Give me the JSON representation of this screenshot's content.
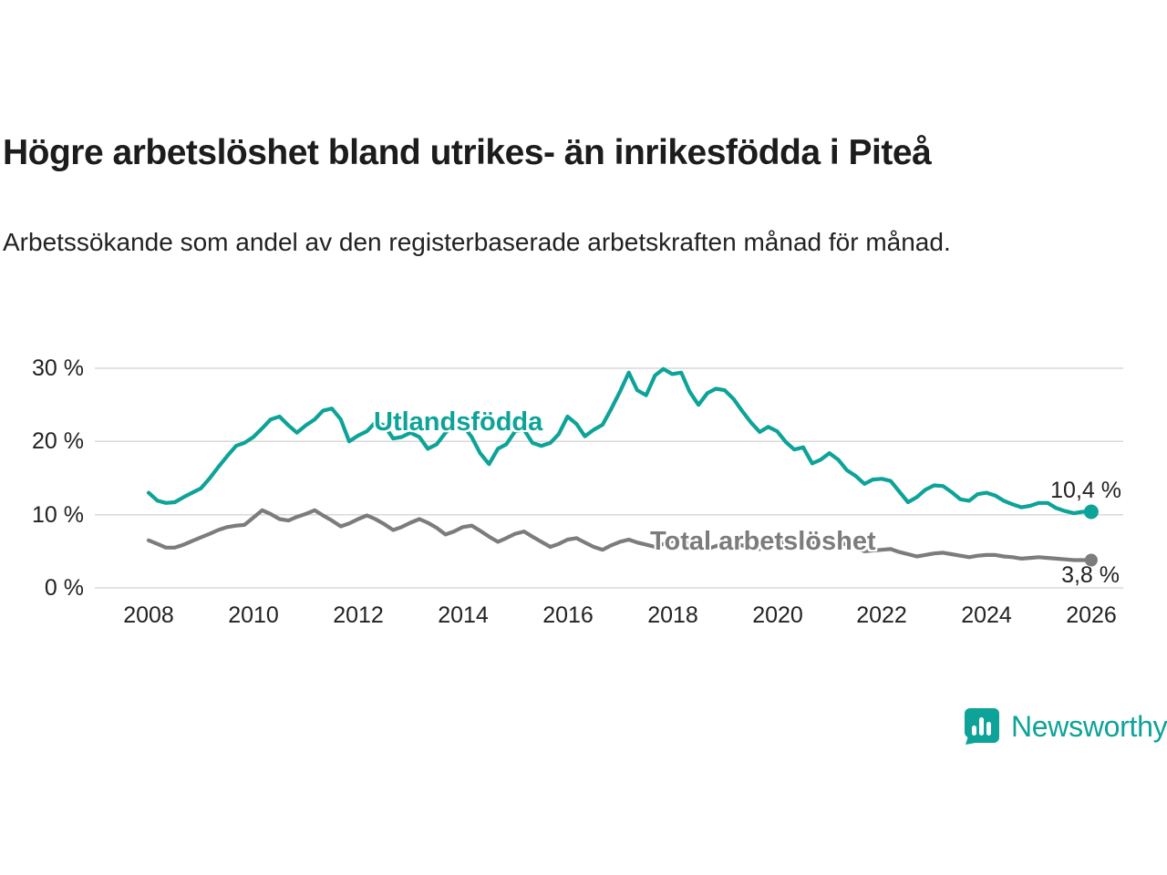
{
  "header": {
    "title": "Högre arbetslöshet bland utrikes- än inrikesfödda i Piteå",
    "subtitle": "Arbetssökande som andel av den registerbaserade arbetskraften månad för månad."
  },
  "branding": {
    "name": "Newsworthy",
    "color": "#0da398"
  },
  "colors": {
    "foreign_born_line": "#0da398",
    "total_line": "#7c7c7c",
    "gridline": "#d9d9d9",
    "text": "#222222"
  },
  "chart_data": {
    "type": "line",
    "title": "Högre arbetslöshet bland utrikes- än inrikesfödda i Piteå",
    "subtitle": "Arbetssökande som andel av den registerbaserade arbetskraften månad för månad.",
    "xlabel": "",
    "ylabel": "",
    "grid": "horizontal",
    "legend_position": "inline-labels",
    "ylim": [
      0,
      30
    ],
    "xlim": [
      2007.7,
      2026.4
    ],
    "y_ticks": [
      0,
      10,
      20,
      30
    ],
    "y_tick_labels": [
      "0 %",
      "10 %",
      "20 %",
      "30 %"
    ],
    "x_ticks": [
      2008,
      2010,
      2012,
      2014,
      2016,
      2018,
      2020,
      2022,
      2024,
      2026
    ],
    "x_tick_labels": [
      "2008",
      "2010",
      "2012",
      "2014",
      "2016",
      "2018",
      "2020",
      "2022",
      "2024",
      "2026"
    ],
    "series": [
      {
        "name": "Utlandsfödda",
        "color": "#0da398",
        "end_label": "10,4 %",
        "end_value": 10.4,
        "points": [
          [
            2008.0,
            13.0
          ],
          [
            2008.17,
            11.9
          ],
          [
            2008.33,
            11.6
          ],
          [
            2008.5,
            11.7
          ],
          [
            2008.67,
            12.4
          ],
          [
            2008.83,
            13.0
          ],
          [
            2009.0,
            13.6
          ],
          [
            2009.17,
            15.0
          ],
          [
            2009.33,
            16.5
          ],
          [
            2009.5,
            18.0
          ],
          [
            2009.67,
            19.4
          ],
          [
            2009.83,
            19.8
          ],
          [
            2010.0,
            20.6
          ],
          [
            2010.17,
            21.8
          ],
          [
            2010.33,
            23.0
          ],
          [
            2010.5,
            23.4
          ],
          [
            2010.67,
            22.2
          ],
          [
            2010.83,
            21.2
          ],
          [
            2011.0,
            22.2
          ],
          [
            2011.17,
            23.0
          ],
          [
            2011.33,
            24.2
          ],
          [
            2011.5,
            24.5
          ],
          [
            2011.67,
            23.0
          ],
          [
            2011.83,
            20.0
          ],
          [
            2012.0,
            20.8
          ],
          [
            2012.17,
            21.4
          ],
          [
            2012.33,
            22.6
          ],
          [
            2012.5,
            22.2
          ],
          [
            2012.67,
            20.4
          ],
          [
            2012.83,
            20.6
          ],
          [
            2013.0,
            21.2
          ],
          [
            2013.17,
            20.6
          ],
          [
            2013.33,
            19.0
          ],
          [
            2013.5,
            19.6
          ],
          [
            2013.67,
            21.2
          ],
          [
            2013.83,
            22.2
          ],
          [
            2014.0,
            22.2
          ],
          [
            2014.17,
            20.6
          ],
          [
            2014.33,
            18.4
          ],
          [
            2014.5,
            16.9
          ],
          [
            2014.67,
            19.0
          ],
          [
            2014.83,
            19.6
          ],
          [
            2015.0,
            21.4
          ],
          [
            2015.17,
            21.6
          ],
          [
            2015.33,
            19.8
          ],
          [
            2015.5,
            19.4
          ],
          [
            2015.67,
            19.8
          ],
          [
            2015.83,
            21.0
          ],
          [
            2016.0,
            23.4
          ],
          [
            2016.17,
            22.4
          ],
          [
            2016.33,
            20.7
          ],
          [
            2016.5,
            21.6
          ],
          [
            2016.67,
            22.3
          ],
          [
            2016.83,
            24.4
          ],
          [
            2017.0,
            26.8
          ],
          [
            2017.17,
            29.4
          ],
          [
            2017.33,
            27.0
          ],
          [
            2017.5,
            26.3
          ],
          [
            2017.67,
            29.0
          ],
          [
            2017.83,
            29.9
          ],
          [
            2018.0,
            29.2
          ],
          [
            2018.17,
            29.4
          ],
          [
            2018.33,
            26.8
          ],
          [
            2018.5,
            25.0
          ],
          [
            2018.67,
            26.6
          ],
          [
            2018.83,
            27.2
          ],
          [
            2019.0,
            27.0
          ],
          [
            2019.17,
            25.8
          ],
          [
            2019.33,
            24.2
          ],
          [
            2019.5,
            22.6
          ],
          [
            2019.67,
            21.3
          ],
          [
            2019.83,
            22.0
          ],
          [
            2020.0,
            21.4
          ],
          [
            2020.17,
            19.9
          ],
          [
            2020.33,
            18.9
          ],
          [
            2020.5,
            19.2
          ],
          [
            2020.67,
            17.0
          ],
          [
            2020.83,
            17.5
          ],
          [
            2021.0,
            18.4
          ],
          [
            2021.17,
            17.5
          ],
          [
            2021.33,
            16.1
          ],
          [
            2021.5,
            15.3
          ],
          [
            2021.67,
            14.2
          ],
          [
            2021.83,
            14.8
          ],
          [
            2022.0,
            14.9
          ],
          [
            2022.17,
            14.6
          ],
          [
            2022.33,
            13.2
          ],
          [
            2022.5,
            11.7
          ],
          [
            2022.67,
            12.4
          ],
          [
            2022.83,
            13.4
          ],
          [
            2023.0,
            14.0
          ],
          [
            2023.17,
            13.9
          ],
          [
            2023.33,
            13.1
          ],
          [
            2023.5,
            12.1
          ],
          [
            2023.67,
            11.9
          ],
          [
            2023.83,
            12.8
          ],
          [
            2024.0,
            13.0
          ],
          [
            2024.17,
            12.6
          ],
          [
            2024.33,
            11.9
          ],
          [
            2024.5,
            11.4
          ],
          [
            2024.67,
            11.0
          ],
          [
            2024.83,
            11.2
          ],
          [
            2025.0,
            11.6
          ],
          [
            2025.17,
            11.6
          ],
          [
            2025.33,
            10.9
          ],
          [
            2025.5,
            10.5
          ],
          [
            2025.67,
            10.2
          ],
          [
            2025.83,
            10.4
          ],
          [
            2026.0,
            10.4
          ]
        ]
      },
      {
        "name": "Total arbetslöshet",
        "color": "#7c7c7c",
        "end_label": "3,8 %",
        "end_value": 3.8,
        "points": [
          [
            2008.0,
            6.5
          ],
          [
            2008.17,
            6.0
          ],
          [
            2008.33,
            5.5
          ],
          [
            2008.5,
            5.5
          ],
          [
            2008.67,
            5.9
          ],
          [
            2008.83,
            6.4
          ],
          [
            2009.0,
            6.9
          ],
          [
            2009.17,
            7.4
          ],
          [
            2009.33,
            7.9
          ],
          [
            2009.5,
            8.3
          ],
          [
            2009.67,
            8.5
          ],
          [
            2009.83,
            8.6
          ],
          [
            2010.0,
            9.6
          ],
          [
            2010.17,
            10.6
          ],
          [
            2010.33,
            10.1
          ],
          [
            2010.5,
            9.4
          ],
          [
            2010.67,
            9.2
          ],
          [
            2010.83,
            9.7
          ],
          [
            2011.0,
            10.1
          ],
          [
            2011.17,
            10.6
          ],
          [
            2011.33,
            9.9
          ],
          [
            2011.5,
            9.2
          ],
          [
            2011.67,
            8.4
          ],
          [
            2011.83,
            8.8
          ],
          [
            2012.0,
            9.4
          ],
          [
            2012.17,
            9.9
          ],
          [
            2012.33,
            9.4
          ],
          [
            2012.5,
            8.7
          ],
          [
            2012.67,
            7.9
          ],
          [
            2012.83,
            8.3
          ],
          [
            2013.0,
            8.9
          ],
          [
            2013.17,
            9.4
          ],
          [
            2013.33,
            8.9
          ],
          [
            2013.5,
            8.2
          ],
          [
            2013.67,
            7.3
          ],
          [
            2013.83,
            7.7
          ],
          [
            2014.0,
            8.3
          ],
          [
            2014.17,
            8.5
          ],
          [
            2014.33,
            7.8
          ],
          [
            2014.5,
            7.0
          ],
          [
            2014.67,
            6.3
          ],
          [
            2014.83,
            6.8
          ],
          [
            2015.0,
            7.4
          ],
          [
            2015.17,
            7.7
          ],
          [
            2015.33,
            7.0
          ],
          [
            2015.5,
            6.3
          ],
          [
            2015.67,
            5.6
          ],
          [
            2015.83,
            6.0
          ],
          [
            2016.0,
            6.6
          ],
          [
            2016.17,
            6.8
          ],
          [
            2016.33,
            6.2
          ],
          [
            2016.5,
            5.6
          ],
          [
            2016.67,
            5.2
          ],
          [
            2016.83,
            5.8
          ],
          [
            2017.0,
            6.3
          ],
          [
            2017.17,
            6.6
          ],
          [
            2017.33,
            6.2
          ],
          [
            2017.5,
            5.9
          ],
          [
            2017.67,
            5.6
          ],
          [
            2017.83,
            6.0
          ],
          [
            2018.0,
            6.4
          ],
          [
            2018.17,
            6.5
          ],
          [
            2018.33,
            6.0
          ],
          [
            2018.5,
            5.6
          ],
          [
            2018.67,
            5.3
          ],
          [
            2018.83,
            5.7
          ],
          [
            2019.0,
            6.0
          ],
          [
            2019.17,
            6.2
          ],
          [
            2019.33,
            5.8
          ],
          [
            2019.5,
            5.5
          ],
          [
            2019.67,
            5.3
          ],
          [
            2019.83,
            5.7
          ],
          [
            2020.0,
            6.1
          ],
          [
            2020.17,
            6.3
          ],
          [
            2020.33,
            6.6
          ],
          [
            2020.5,
            6.7
          ],
          [
            2020.67,
            6.2
          ],
          [
            2020.83,
            6.2
          ],
          [
            2021.0,
            6.4
          ],
          [
            2021.17,
            6.3
          ],
          [
            2021.33,
            5.9
          ],
          [
            2021.5,
            5.5
          ],
          [
            2021.67,
            5.0
          ],
          [
            2021.83,
            5.1
          ],
          [
            2022.0,
            5.2
          ],
          [
            2022.17,
            5.3
          ],
          [
            2022.33,
            4.9
          ],
          [
            2022.5,
            4.6
          ],
          [
            2022.67,
            4.3
          ],
          [
            2022.83,
            4.5
          ],
          [
            2023.0,
            4.7
          ],
          [
            2023.17,
            4.8
          ],
          [
            2023.33,
            4.6
          ],
          [
            2023.5,
            4.4
          ],
          [
            2023.67,
            4.2
          ],
          [
            2023.83,
            4.4
          ],
          [
            2024.0,
            4.5
          ],
          [
            2024.17,
            4.5
          ],
          [
            2024.33,
            4.3
          ],
          [
            2024.5,
            4.2
          ],
          [
            2024.67,
            4.0
          ],
          [
            2024.83,
            4.1
          ],
          [
            2025.0,
            4.2
          ],
          [
            2025.17,
            4.1
          ],
          [
            2025.33,
            4.0
          ],
          [
            2025.5,
            3.9
          ],
          [
            2025.67,
            3.8
          ],
          [
            2025.83,
            3.8
          ],
          [
            2026.0,
            3.8
          ]
        ]
      }
    ]
  }
}
